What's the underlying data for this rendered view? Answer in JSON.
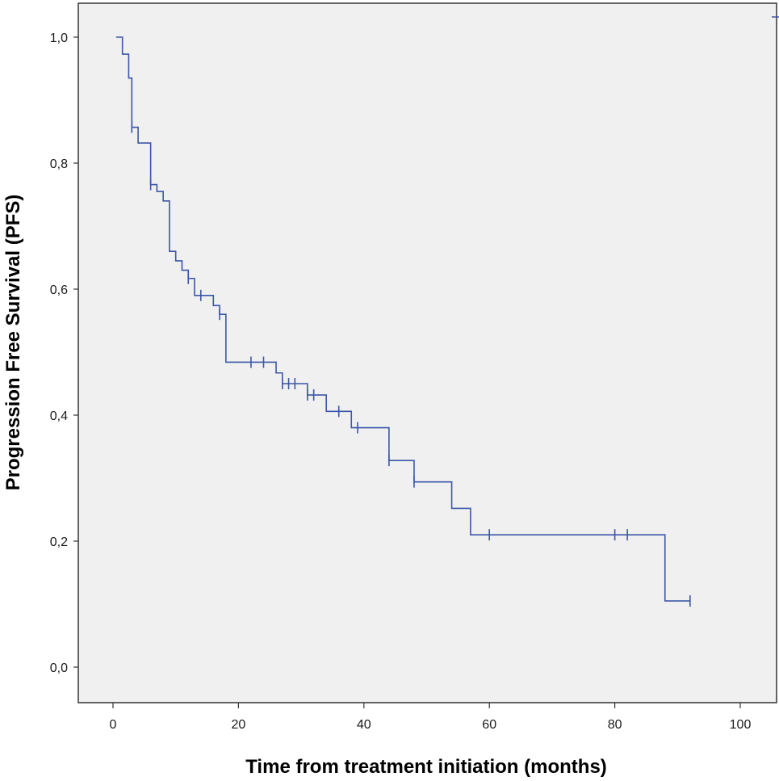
{
  "chart_data": {
    "type": "line",
    "subtype": "kaplan-meier",
    "title": "",
    "xlabel": "Time from treatment initiation (months)",
    "ylabel": "Progression Free Survival (PFS)",
    "xlim": [
      -5,
      105
    ],
    "ylim": [
      -0.05,
      1.05
    ],
    "xticks": [
      0,
      20,
      40,
      60,
      80,
      100
    ],
    "xtick_labels": [
      "0",
      "20",
      "40",
      "60",
      "80",
      "100"
    ],
    "yticks": [
      0.0,
      0.2,
      0.4,
      0.6,
      0.8,
      1.0
    ],
    "ytick_labels": [
      "0,0",
      "0,2",
      "0,4",
      "0,6",
      "0,8",
      "1,0"
    ],
    "colors": {
      "line": "#3b56a8",
      "plot_bg": "#f0f0f0",
      "frame": "#333333"
    },
    "series": [
      {
        "name": "PFS",
        "steps": [
          {
            "x": 0.5,
            "y": 1.0
          },
          {
            "x": 1.5,
            "y": 0.973
          },
          {
            "x": 2.5,
            "y": 0.935
          },
          {
            "x": 3.0,
            "y": 0.857
          },
          {
            "x": 4.0,
            "y": 0.832
          },
          {
            "x": 6.0,
            "y": 0.766
          },
          {
            "x": 7.0,
            "y": 0.755
          },
          {
            "x": 8.0,
            "y": 0.74
          },
          {
            "x": 9.0,
            "y": 0.66
          },
          {
            "x": 10.0,
            "y": 0.645
          },
          {
            "x": 11.0,
            "y": 0.63
          },
          {
            "x": 12.0,
            "y": 0.617
          },
          {
            "x": 13.0,
            "y": 0.59
          },
          {
            "x": 16.0,
            "y": 0.574
          },
          {
            "x": 17.0,
            "y": 0.56
          },
          {
            "x": 18.0,
            "y": 0.484
          },
          {
            "x": 26.0,
            "y": 0.467
          },
          {
            "x": 27.0,
            "y": 0.45
          },
          {
            "x": 31.0,
            "y": 0.432
          },
          {
            "x": 34.0,
            "y": 0.406
          },
          {
            "x": 38.0,
            "y": 0.38
          },
          {
            "x": 44.0,
            "y": 0.328
          },
          {
            "x": 48.0,
            "y": 0.294
          },
          {
            "x": 54.0,
            "y": 0.252
          },
          {
            "x": 57.0,
            "y": 0.21
          },
          {
            "x": 88.0,
            "y": 0.105
          }
        ],
        "end_x": 92.0,
        "censored": [
          {
            "x": 3.0,
            "y": 0.857
          },
          {
            "x": 6.0,
            "y": 0.766
          },
          {
            "x": 12.0,
            "y": 0.617
          },
          {
            "x": 14.0,
            "y": 0.59
          },
          {
            "x": 17.0,
            "y": 0.56
          },
          {
            "x": 22.0,
            "y": 0.484
          },
          {
            "x": 24.0,
            "y": 0.484
          },
          {
            "x": 27.0,
            "y": 0.45
          },
          {
            "x": 28.0,
            "y": 0.45
          },
          {
            "x": 29.0,
            "y": 0.45
          },
          {
            "x": 31.0,
            "y": 0.432
          },
          {
            "x": 32.0,
            "y": 0.432
          },
          {
            "x": 36.0,
            "y": 0.406
          },
          {
            "x": 39.0,
            "y": 0.38
          },
          {
            "x": 44.0,
            "y": 0.328
          },
          {
            "x": 48.0,
            "y": 0.294
          },
          {
            "x": 60.0,
            "y": 0.21
          },
          {
            "x": 80.0,
            "y": 0.21
          },
          {
            "x": 82.0,
            "y": 0.21
          },
          {
            "x": 92.0,
            "y": 0.105
          }
        ]
      }
    ]
  }
}
